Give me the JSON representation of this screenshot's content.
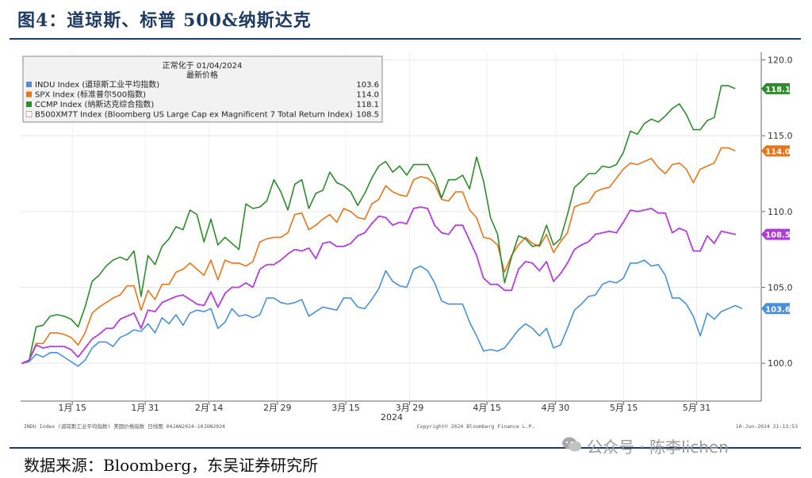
{
  "figure": {
    "title": "图4：道琼斯、标普 500&纳斯达克",
    "source": "数据来源：Bloomberg，东吴证券研究所",
    "watermark": "公众号 · 陈李lichen"
  },
  "chart_data": {
    "type": "line",
    "legend_header": [
      "正常化于 01/04/2024",
      "最新价格"
    ],
    "legend_position": "top-left",
    "x_ticks": [
      "1月 15",
      "1月 31",
      "2月 14",
      "2月 29",
      "3月 15",
      "3月 29",
      "4月 15",
      "4月 30",
      "5月 15",
      "5月 31"
    ],
    "x_year_label": "2024",
    "y_ticks": [
      "100.0",
      "105.0",
      "110.0",
      "115.0",
      "120.0"
    ],
    "ylim": [
      97.5,
      120.5
    ],
    "grid": true,
    "footer_left": "INDU Index (道琼斯工业平均指数) 美国价格指数  日线图 04JAN2024-10JUN2024",
    "footer_center": "Copyright© 2024 Bloomberg Finance L.P.",
    "footer_right": "10-Jun-2024 21:13:53",
    "series": [
      {
        "name": "INDU Index (道琼斯工业平均指数)",
        "last": "103.6",
        "color": "#4a90d9",
        "style": "solid",
        "values": [
          100.0,
          100.1,
          100.6,
          100.4,
          100.7,
          100.7,
          100.4,
          100.1,
          99.8,
          100.2,
          101.0,
          101.4,
          101.4,
          101.1,
          101.7,
          101.9,
          102.2,
          102.1,
          102.6,
          102.0,
          103.0,
          102.6,
          103.2,
          102.5,
          103.3,
          103.5,
          103.4,
          103.6,
          102.3,
          102.7,
          103.6,
          103.1,
          103.2,
          103.0,
          103.2,
          104.3,
          104.3,
          104.0,
          103.9,
          104.0,
          104.2,
          103.1,
          103.4,
          103.7,
          103.6,
          103.5,
          104.3,
          104.3,
          103.7,
          103.6,
          104.2,
          104.9,
          106.1,
          105.4,
          105.1,
          105.0,
          106.2,
          106.4,
          106.1,
          105.3,
          104.1,
          103.9,
          103.9,
          103.9,
          102.7,
          101.8,
          100.8,
          100.9,
          100.8,
          101.0,
          101.6,
          102.2,
          102.6,
          102.3,
          101.8,
          102.3,
          101.0,
          101.2,
          102.3,
          103.5,
          103.9,
          104.4,
          104.5,
          105.2,
          105.4,
          105.3,
          105.6,
          106.6,
          106.6,
          106.8,
          106.4,
          106.5,
          105.8,
          104.3,
          104.3,
          103.9,
          103.1,
          101.8,
          103.3,
          102.9,
          103.4,
          103.6,
          103.8,
          103.6
        ]
      },
      {
        "name": "SPX Index (标准普尔500指数)",
        "last": "114.0",
        "color": "#e8751a",
        "style": "solid",
        "values": [
          100.0,
          100.2,
          101.3,
          101.3,
          102.0,
          102.0,
          101.9,
          101.7,
          101.2,
          102.0,
          103.3,
          103.7,
          104.0,
          104.3,
          104.5,
          105.1,
          105.1,
          103.5,
          104.8,
          104.2,
          105.2,
          105.2,
          106.0,
          106.2,
          106.6,
          106.2,
          105.8,
          106.8,
          105.5,
          106.8,
          106.6,
          106.6,
          106.4,
          106.7,
          108.0,
          108.2,
          108.3,
          108.3,
          108.6,
          109.8,
          109.9,
          108.8,
          109.1,
          109.5,
          109.8,
          109.3,
          110.2,
          110.0,
          109.6,
          109.5,
          110.5,
          110.8,
          111.7,
          111.3,
          111.1,
          111.0,
          112.1,
          112.3,
          112.2,
          111.8,
          110.8,
          110.7,
          111.3,
          111.3,
          110.1,
          109.6,
          108.3,
          108.2,
          107.8,
          106.0,
          107.1,
          107.8,
          108.3,
          107.9,
          107.7,
          108.5,
          107.3,
          108.0,
          108.6,
          110.3,
          110.5,
          110.6,
          111.3,
          111.5,
          111.6,
          112.2,
          112.8,
          113.2,
          113.1,
          113.3,
          113.5,
          112.9,
          112.5,
          113.1,
          113.2,
          112.8,
          111.9,
          112.8,
          113.0,
          113.2,
          114.2,
          114.2,
          114.0
        ]
      },
      {
        "name": "CCMP Index (纳斯达克综合指数)",
        "last": "118.1",
        "color": "#2e8b2e",
        "style": "solid",
        "values": [
          100.0,
          100.2,
          102.4,
          102.5,
          103.1,
          103.2,
          103.1,
          102.9,
          102.4,
          103.7,
          105.4,
          105.8,
          106.4,
          106.8,
          107.0,
          106.8,
          107.4,
          104.4,
          107.1,
          106.5,
          107.7,
          108.2,
          109.0,
          108.8,
          110.1,
          109.8,
          108.0,
          109.5,
          107.8,
          108.3,
          107.9,
          107.5,
          110.5,
          110.2,
          110.3,
          110.7,
          112.1,
          111.3,
          110.1,
          111.8,
          112.1,
          110.2,
          111.2,
          111.4,
          112.6,
          111.9,
          111.7,
          111.3,
          110.4,
          111.2,
          112.2,
          113.0,
          113.3,
          112.6,
          113.0,
          112.4,
          113.1,
          113.1,
          113.1,
          112.2,
          110.9,
          112.1,
          112.1,
          112.4,
          111.5,
          113.6,
          112.0,
          109.6,
          108.5,
          105.3,
          107.0,
          108.4,
          108.2,
          107.7,
          107.8,
          109.1,
          107.8,
          108.2,
          109.8,
          111.6,
          112.0,
          112.5,
          112.5,
          113.0,
          112.9,
          113.1,
          113.9,
          115.3,
          115.1,
          115.8,
          116.1,
          115.9,
          116.3,
          116.8,
          117.1,
          116.4,
          115.4,
          115.4,
          116.0,
          116.2,
          118.3,
          118.3,
          118.1
        ]
      },
      {
        "name": "B500XM7T Index (Bloomberg US Large Cap ex Magnificent 7 Total Return Index)",
        "last": "108.5",
        "color": "#b03ad8",
        "style": "dotted",
        "values": [
          100.0,
          100.2,
          101.2,
          101.0,
          101.1,
          101.1,
          101.1,
          100.9,
          100.4,
          101.0,
          101.6,
          101.9,
          102.3,
          102.3,
          102.9,
          103.1,
          103.3,
          102.3,
          103.5,
          103.4,
          104.0,
          104.2,
          104.4,
          104.5,
          104.2,
          103.9,
          103.8,
          104.7,
          103.7,
          104.6,
          105.0,
          105.0,
          105.3,
          105.0,
          106.2,
          106.5,
          106.5,
          106.8,
          107.2,
          107.5,
          107.4,
          107.6,
          106.9,
          107.9,
          108.0,
          107.7,
          107.7,
          107.9,
          108.4,
          108.6,
          109.2,
          109.7,
          109.6,
          109.1,
          109.3,
          109.2,
          110.2,
          110.3,
          110.2,
          109.1,
          108.6,
          108.5,
          109.1,
          109.1,
          108.1,
          107.1,
          105.6,
          105.2,
          105.2,
          104.8,
          104.8,
          106.2,
          106.7,
          106.6,
          106.1,
          106.7,
          105.4,
          105.9,
          106.6,
          107.5,
          107.8,
          108.0,
          108.5,
          108.6,
          108.7,
          108.6,
          109.3,
          110.1,
          110.0,
          110.1,
          110.2,
          109.9,
          109.9,
          108.6,
          108.9,
          108.7,
          107.4,
          107.4,
          108.4,
          107.9,
          108.7,
          108.6,
          108.5
        ]
      }
    ]
  }
}
